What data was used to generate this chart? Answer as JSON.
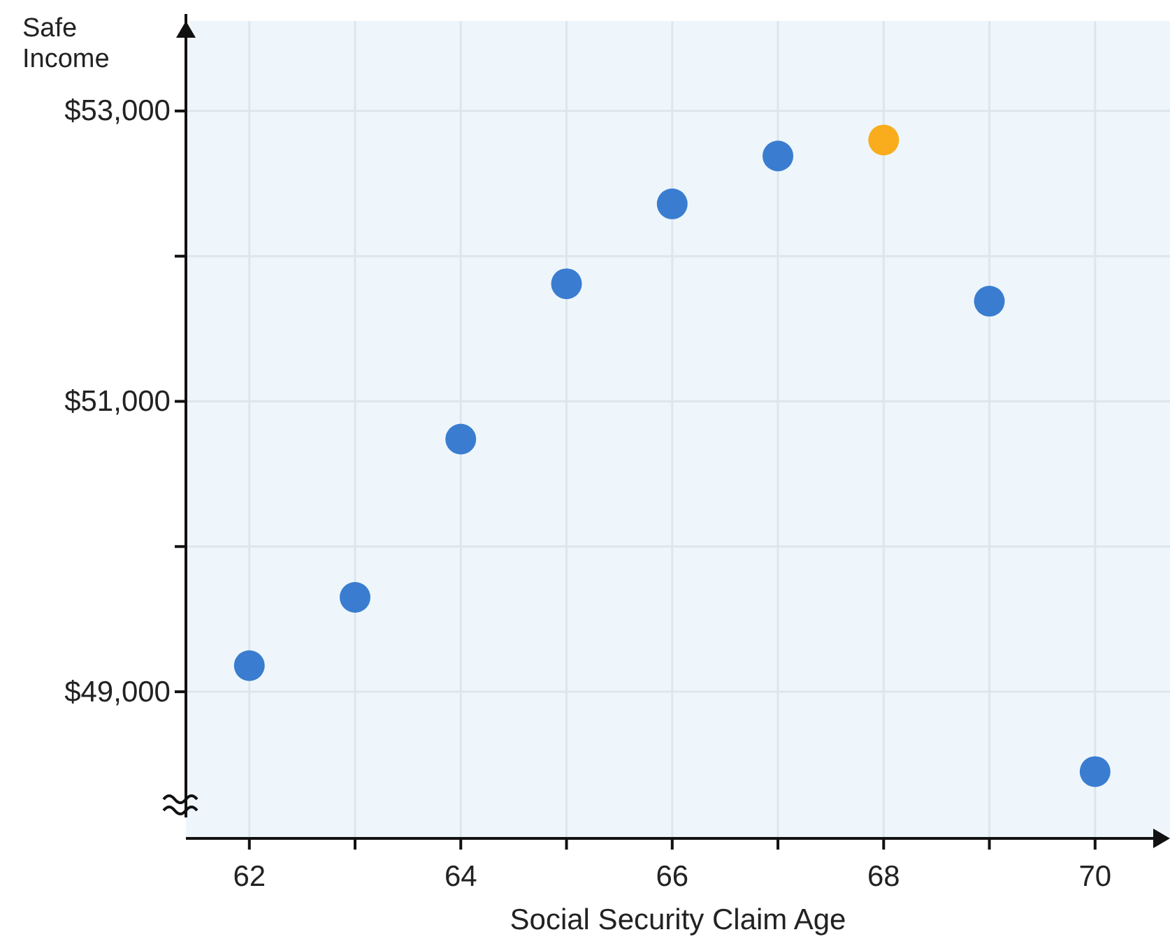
{
  "chart_data": {
    "type": "scatter",
    "xlabel": "Social Security Claim Age",
    "ylabel": "Safe Income",
    "x": [
      62,
      63,
      64,
      65,
      66,
      67,
      68,
      69,
      70
    ],
    "values": [
      49180,
      49650,
      50740,
      51810,
      52360,
      52690,
      52800,
      51690,
      48450
    ],
    "colors": [
      "#3a7dd0",
      "#3a7dd0",
      "#3a7dd0",
      "#3a7dd0",
      "#3a7dd0",
      "#3a7dd0",
      "#f9ad1c",
      "#3a7dd0",
      "#3a7dd0"
    ],
    "xlim": [
      61.4,
      70.55
    ],
    "ylim": [
      47990,
      53620
    ],
    "xticks": [
      62,
      {
        "value": 63,
        "label": null
      },
      64,
      {
        "value": 65,
        "label": null
      },
      66,
      {
        "value": 67,
        "label": null
      },
      68,
      {
        "value": 69,
        "label": null
      },
      70
    ],
    "yticks": [
      {
        "value": 49000,
        "label": "$49,000"
      },
      {
        "value": 50000,
        "label": null
      },
      {
        "value": 51000,
        "label": "$51,000"
      },
      {
        "value": 52000,
        "label": null
      },
      {
        "value": 53000,
        "label": "$53,000"
      }
    ],
    "grid": true,
    "marker": "circle"
  }
}
